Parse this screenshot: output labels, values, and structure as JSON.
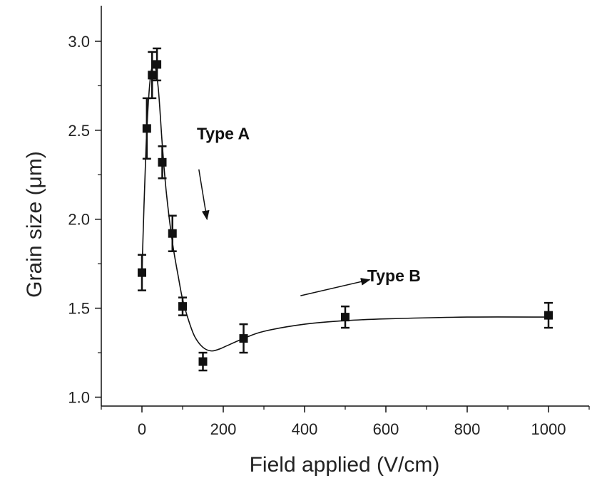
{
  "chart_data": {
    "type": "scatter",
    "title": "",
    "xlabel": "Field applied (V/cm)",
    "ylabel": "Grain size (μm)",
    "xlim": [
      -100,
      1100
    ],
    "ylim": [
      0.95,
      3.2
    ],
    "xticks": [
      0,
      200,
      400,
      600,
      800,
      1000
    ],
    "xtick_labels": [
      "0",
      "200",
      "400",
      "600",
      "800",
      "1000"
    ],
    "yticks": [
      1.0,
      1.5,
      2.0,
      2.5,
      3.0
    ],
    "ytick_labels": [
      "1.0",
      "1.5",
      "2.0",
      "2.5",
      "3.0"
    ],
    "grid": false,
    "series": [
      {
        "name": "Grain size",
        "marker": "square",
        "color": "#111111",
        "x": [
          0,
          12,
          25,
          37,
          50,
          75,
          100,
          150,
          250,
          500,
          1000
        ],
        "y": [
          1.7,
          2.51,
          2.81,
          2.87,
          2.32,
          1.92,
          1.51,
          1.2,
          1.33,
          1.45,
          1.46
        ],
        "error": [
          0.1,
          0.17,
          0.13,
          0.09,
          0.09,
          0.1,
          0.05,
          0.05,
          0.08,
          0.06,
          0.07
        ]
      }
    ],
    "fit_curve": {
      "x": [
        0,
        10,
        20,
        30,
        40,
        50,
        60,
        75,
        90,
        100,
        115,
        130,
        150,
        170,
        190,
        210,
        250,
        300,
        400,
        500,
        600,
        800,
        1000
      ],
      "y": [
        1.7,
        2.4,
        2.78,
        2.87,
        2.74,
        2.42,
        2.15,
        1.87,
        1.67,
        1.55,
        1.43,
        1.34,
        1.28,
        1.26,
        1.27,
        1.29,
        1.33,
        1.37,
        1.41,
        1.43,
        1.44,
        1.45,
        1.45
      ],
      "color": "#111111"
    },
    "annotations": [
      {
        "text": "Type A",
        "x": 200,
        "y": 2.45,
        "arrow_from": [
          140,
          2.28
        ],
        "arrow_to": [
          160,
          2.0
        ]
      },
      {
        "text": "Type B",
        "x": 620,
        "y": 1.65,
        "arrow_from": [
          390,
          1.57
        ],
        "arrow_to": [
          560,
          1.66
        ]
      }
    ]
  }
}
